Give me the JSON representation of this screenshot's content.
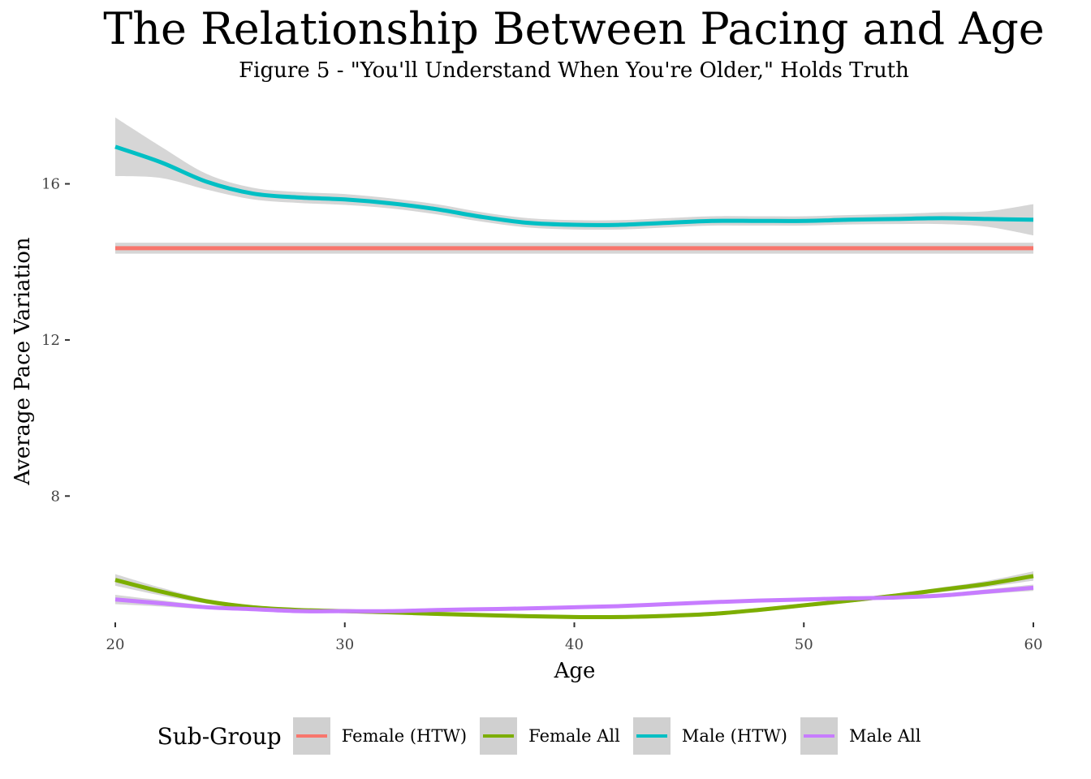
{
  "chart_data": {
    "type": "line",
    "title": "The Relationship Between Pacing and Age",
    "subtitle": "Figure 5 - \"You'll Understand When You're Older,\" Holds Truth",
    "xlabel": "Age",
    "ylabel": "Average Pace Variation",
    "xlim": [
      20,
      60
    ],
    "ylim": [
      4.7,
      17.8
    ],
    "x_ticks": [
      20,
      30,
      40,
      50,
      60
    ],
    "y_ticks": [
      8,
      12,
      16
    ],
    "grid": false,
    "legend_title": "Sub-Group",
    "legend_position": "bottom",
    "series": [
      {
        "name": "Female (HTW)",
        "color": "#F8766D",
        "x": [
          20,
          25,
          30,
          35,
          40,
          45,
          50,
          55,
          60
        ],
        "y": [
          14.35,
          14.35,
          14.35,
          14.35,
          14.35,
          14.35,
          14.35,
          14.35,
          14.35
        ],
        "ci_halfwidth": [
          0.14,
          0.14,
          0.14,
          0.14,
          0.14,
          0.14,
          0.14,
          0.14,
          0.14
        ]
      },
      {
        "name": "Female All",
        "color": "#7CAE00",
        "x": [
          20,
          22,
          24,
          26,
          28,
          30,
          32,
          34,
          36,
          38,
          40,
          42,
          44,
          46,
          48,
          50,
          52,
          54,
          56,
          58,
          60
        ],
        "y": [
          5.85,
          5.55,
          5.3,
          5.15,
          5.08,
          5.05,
          5.02,
          4.98,
          4.95,
          4.92,
          4.9,
          4.9,
          4.93,
          4.98,
          5.08,
          5.2,
          5.32,
          5.45,
          5.6,
          5.75,
          5.95
        ],
        "ci_halfwidth": [
          0.15,
          0.1,
          0.06,
          0.05,
          0.05,
          0.05,
          0.05,
          0.05,
          0.05,
          0.05,
          0.05,
          0.05,
          0.05,
          0.05,
          0.05,
          0.05,
          0.05,
          0.05,
          0.06,
          0.08,
          0.12
        ]
      },
      {
        "name": "Male (HTW)",
        "color": "#00BFC4",
        "x": [
          20,
          22,
          24,
          26,
          28,
          30,
          32,
          34,
          36,
          38,
          40,
          42,
          44,
          46,
          48,
          50,
          52,
          54,
          56,
          58,
          60
        ],
        "y": [
          16.95,
          16.55,
          16.05,
          15.75,
          15.65,
          15.6,
          15.5,
          15.35,
          15.15,
          15.0,
          14.95,
          14.95,
          15.0,
          15.05,
          15.05,
          15.05,
          15.08,
          15.1,
          15.12,
          15.1,
          15.08
        ],
        "ci_halfwidth": [
          0.75,
          0.4,
          0.2,
          0.15,
          0.14,
          0.14,
          0.13,
          0.13,
          0.12,
          0.12,
          0.12,
          0.12,
          0.12,
          0.12,
          0.12,
          0.12,
          0.12,
          0.13,
          0.15,
          0.2,
          0.4
        ]
      },
      {
        "name": "Male All",
        "color": "#C77CFF",
        "x": [
          20,
          22,
          24,
          26,
          28,
          30,
          32,
          34,
          36,
          38,
          40,
          42,
          44,
          46,
          48,
          50,
          52,
          54,
          56,
          58,
          60
        ],
        "y": [
          5.35,
          5.25,
          5.15,
          5.1,
          5.05,
          5.05,
          5.05,
          5.08,
          5.1,
          5.12,
          5.15,
          5.18,
          5.23,
          5.28,
          5.32,
          5.35,
          5.38,
          5.4,
          5.45,
          5.55,
          5.65
        ],
        "ci_halfwidth": [
          0.12,
          0.08,
          0.05,
          0.04,
          0.04,
          0.04,
          0.04,
          0.04,
          0.04,
          0.04,
          0.04,
          0.04,
          0.04,
          0.04,
          0.04,
          0.04,
          0.04,
          0.04,
          0.05,
          0.06,
          0.08
        ]
      }
    ]
  }
}
